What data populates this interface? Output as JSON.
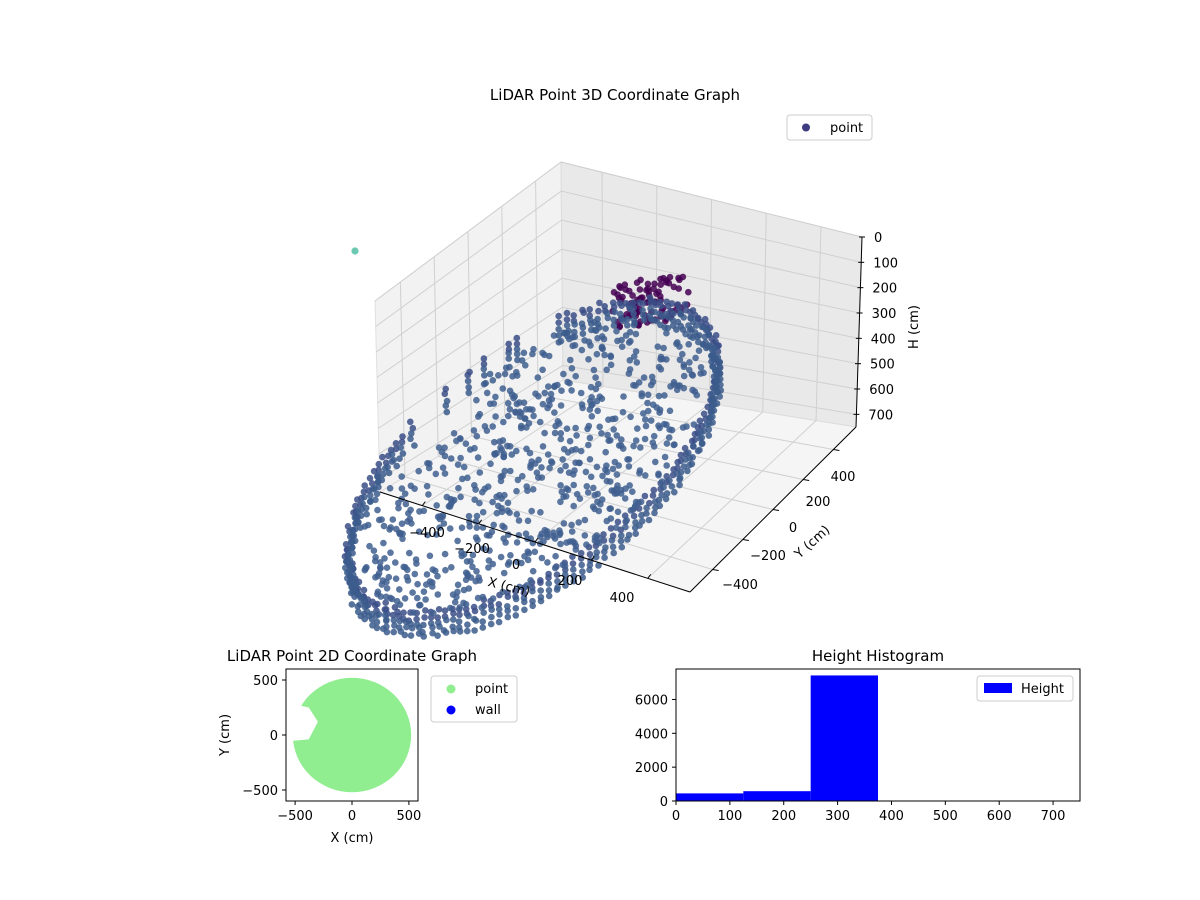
{
  "chart_data": [
    {
      "type": "scatter",
      "subtype": "3d-scatter",
      "title": "LiDAR Point 3D Coordinate Graph",
      "xlabel": "X (cm)",
      "ylabel": "Y (cm)",
      "zlabel": "H (cm)",
      "xlim": [
        -550,
        550
      ],
      "ylim": [
        -550,
        550
      ],
      "zlim": [
        0,
        750
      ],
      "z_inverted": true,
      "x_ticks": [
        "−400",
        "−200",
        "0",
        "200",
        "400"
      ],
      "y_ticks": [
        "−400",
        "−200",
        "0",
        "200",
        "400"
      ],
      "z_ticks": [
        "0",
        "100",
        "200",
        "300",
        "400",
        "500",
        "600",
        "700"
      ],
      "legend": [
        {
          "label": "point",
          "color": "#3e3b7f"
        }
      ],
      "legend_position": "upper right",
      "colormap": "viridis",
      "grid": true,
      "outlier_point": {
        "x": -700,
        "y": 480,
        "h": 110,
        "color": "#6cc8b0"
      },
      "ring_radius": 500,
      "ring_height_range": [
        290,
        380
      ],
      "colors": {
        "main": "#3b5c8c",
        "dark": "#440154",
        "mid": "#3a4d87"
      }
    },
    {
      "type": "scatter",
      "title": "LiDAR Point 2D Coordinate Graph",
      "xlabel": "X (cm)",
      "ylabel": "Y (cm)",
      "xlim": [
        -580,
        580
      ],
      "ylim": [
        -600,
        600
      ],
      "x_ticks": [
        "−500",
        "0",
        "500"
      ],
      "y_ticks": [
        "−500",
        "0",
        "500"
      ],
      "legend": [
        {
          "label": "point",
          "color": "#90ee90"
        },
        {
          "label": "wall",
          "color": "#0000ff"
        }
      ],
      "legend_position": "outside right",
      "region": {
        "shape": "disk",
        "center": [
          0,
          0
        ],
        "radius": 520,
        "cutout_x_max": -380,
        "color": "#90ee90"
      }
    },
    {
      "type": "bar",
      "subtype": "histogram",
      "title": "Height Histogram",
      "bins": [
        [
          0,
          125
        ],
        [
          125,
          250
        ],
        [
          250,
          375
        ],
        [
          375,
          500
        ],
        [
          500,
          625
        ],
        [
          625,
          750
        ]
      ],
      "values": [
        450,
        580,
        7420,
        0,
        0,
        0
      ],
      "xlim": [
        0,
        750
      ],
      "ylim": [
        0,
        7800
      ],
      "x_ticks": [
        "0",
        "100",
        "200",
        "300",
        "400",
        "500",
        "600",
        "700"
      ],
      "y_ticks": [
        "0",
        "2000",
        "4000",
        "6000"
      ],
      "legend": [
        {
          "label": "Height",
          "color": "#0000ff"
        }
      ],
      "legend_position": "upper right",
      "color": "#0000ff"
    }
  ]
}
